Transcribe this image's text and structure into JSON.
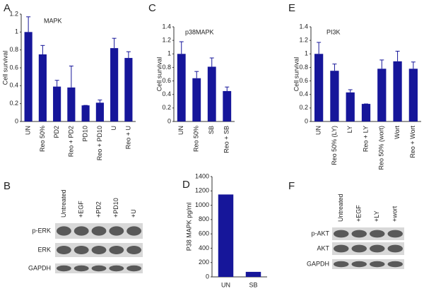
{
  "chart_data": [
    {
      "type": "bar",
      "panel": "A",
      "title": "MAPK",
      "y_label": "Cell survival",
      "color": "#16169a",
      "categories": [
        "UN",
        "Reo 50%",
        "PD2",
        "Reo + PD2",
        "PD10",
        "Reo + PD10",
        "U",
        "Reo + U"
      ],
      "values": [
        1.0,
        0.75,
        0.39,
        0.38,
        0.18,
        0.21,
        0.82,
        0.71
      ],
      "errors": [
        0.17,
        0.1,
        0.07,
        0.24,
        0,
        0.03,
        0.11,
        0.07
      ],
      "ylim": [
        0,
        1.2
      ],
      "yticks": [
        0,
        0.2,
        0.4,
        0.6,
        0.8,
        1,
        1.2
      ]
    },
    {
      "type": "bar",
      "panel": "C",
      "title": "p38MAPK",
      "y_label": "Cell survival",
      "color": "#16169a",
      "categories": [
        "UN",
        "Reo 50%",
        "SB",
        "Reo + SB"
      ],
      "values": [
        1.0,
        0.64,
        0.81,
        0.45
      ],
      "errors": [
        0.18,
        0.1,
        0.13,
        0.06
      ],
      "ylim": [
        0,
        1.4
      ],
      "yticks": [
        0,
        0.2,
        0.4,
        0.6,
        0.8,
        1,
        1.2,
        1.4
      ]
    },
    {
      "type": "bar",
      "panel": "E",
      "title": "PI3K",
      "y_label": "Cell survival",
      "color": "#16169a",
      "categories": [
        "UN",
        "Reo 50% (LY)",
        "LY",
        "Reo + LY",
        "Reo 50% (wort)",
        "Wort",
        "Reo + Wort"
      ],
      "values": [
        1.0,
        0.75,
        0.43,
        0.26,
        0.78,
        0.89,
        0.78
      ],
      "errors": [
        0.17,
        0.1,
        0.04,
        0,
        0.13,
        0.15,
        0.1
      ],
      "ylim": [
        0,
        1.4
      ],
      "yticks": [
        0,
        0.2,
        0.4,
        0.6,
        0.8,
        1,
        1.2,
        1.4
      ]
    },
    {
      "type": "bar",
      "panel": "D",
      "y_label": "P38 MAPK pg/ml",
      "color": "#16169a",
      "categories": [
        "UN",
        "SB"
      ],
      "values": [
        1150,
        70
      ],
      "ylim": [
        0,
        1400
      ],
      "yticks": [
        0,
        200,
        400,
        600,
        800,
        1000,
        1200,
        1400
      ]
    }
  ],
  "blots": [
    {
      "panel": "B",
      "lanes": [
        "Untreated",
        "+EGF",
        "+PD2",
        "+PD10",
        "+U"
      ],
      "rows": [
        "p-ERK",
        "ERK",
        "GAPDH"
      ]
    },
    {
      "panel": "F",
      "lanes": [
        "Untreated",
        "+EGF",
        "+LY",
        "+wort"
      ],
      "rows": [
        "p-AKT",
        "AKT",
        "GAPDH"
      ]
    }
  ]
}
